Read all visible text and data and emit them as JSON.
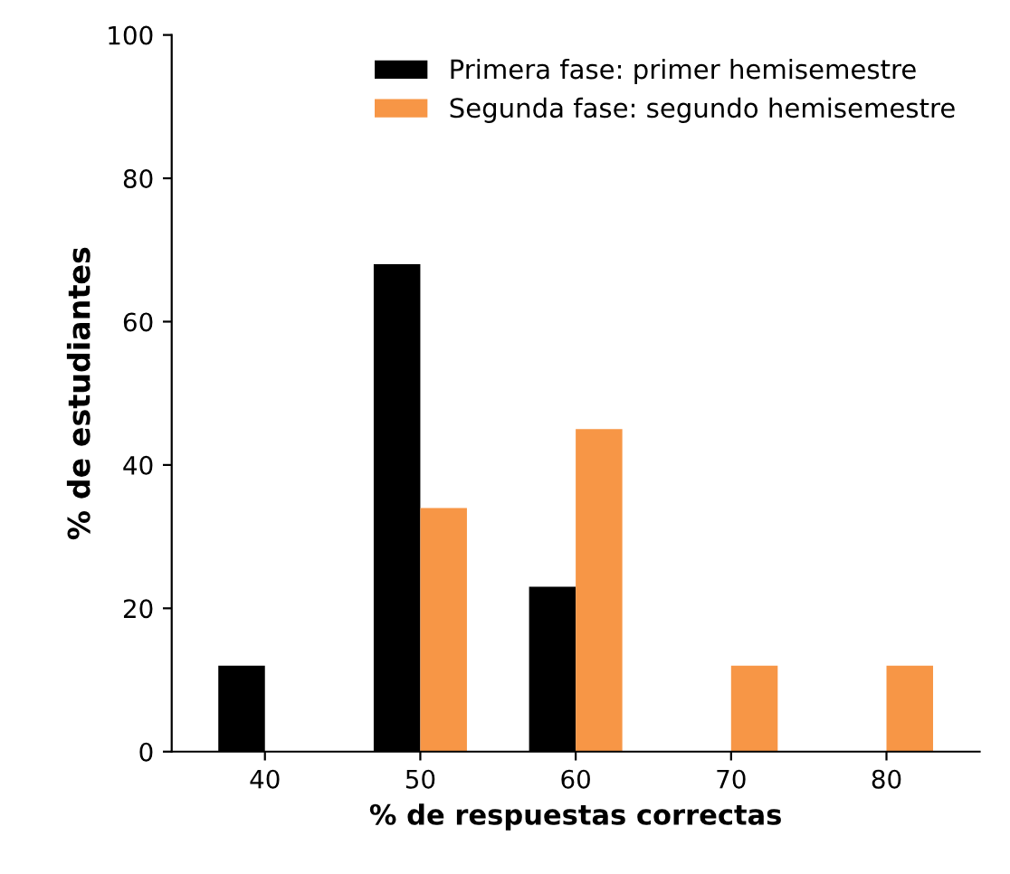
{
  "chart_data": {
    "type": "bar",
    "xlabel": "% de respuestas correctas",
    "ylabel": "% de estudiantes",
    "categories": [
      "40",
      "50",
      "60",
      "70",
      "80"
    ],
    "series": [
      {
        "name": "Primera fase: primer hemisemestre",
        "color": "#000000",
        "values": [
          12,
          68,
          23,
          0,
          0
        ]
      },
      {
        "name": "Segunda fase: segundo hemisemestre",
        "color": "#f79646",
        "values": [
          0,
          34,
          45,
          12,
          12
        ]
      }
    ],
    "ylim": [
      0,
      100
    ],
    "yticks": [
      0,
      20,
      40,
      60,
      80,
      100
    ],
    "grid": false,
    "legend": "top right"
  }
}
